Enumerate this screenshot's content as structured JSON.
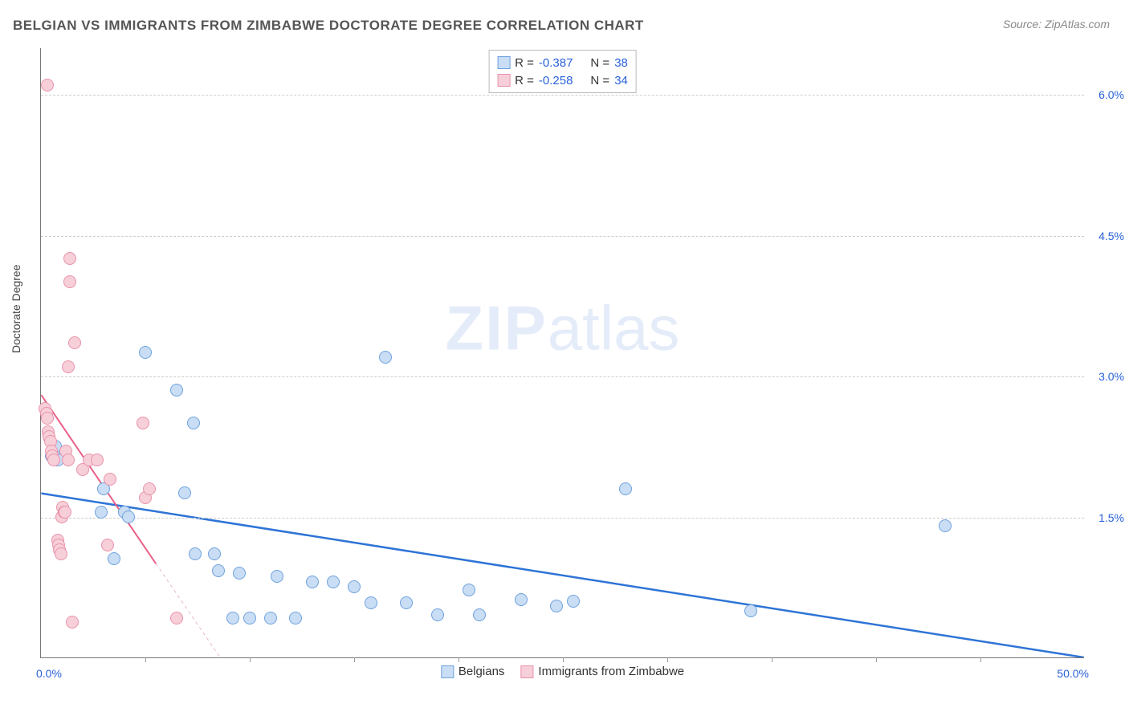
{
  "title": "BELGIAN VS IMMIGRANTS FROM ZIMBABWE DOCTORATE DEGREE CORRELATION CHART",
  "source": "Source: ZipAtlas.com",
  "ylabel": "Doctorate Degree",
  "watermark_a": "ZIP",
  "watermark_b": "atlas",
  "chart": {
    "type": "scatter",
    "xlim": [
      0,
      50
    ],
    "ylim": [
      0,
      6.5
    ],
    "x_left_label": "0.0%",
    "x_right_label": "50.0%",
    "x_ticks": [
      5,
      10,
      15,
      20,
      25,
      30,
      35,
      40,
      45
    ],
    "y_gridlines": [
      1.5,
      3.0,
      4.5,
      6.0
    ],
    "y_tick_labels": [
      "1.5%",
      "3.0%",
      "4.5%",
      "6.0%"
    ],
    "grid_color": "#cccccc",
    "axis_color": "#777777",
    "plot_bg": "#ffffff",
    "point_radius": 8,
    "series": [
      {
        "name": "Belgians",
        "fill": "#c9ddf4",
        "stroke": "#6fa2de",
        "r_label": "R =",
        "r_value": "-0.387",
        "n_label": "N =",
        "n_value": "38",
        "trend": {
          "color": "#2e74d6",
          "width": 2.5,
          "x1": 0,
          "y1": 1.75,
          "x2": 50,
          "y2": 0.0,
          "dash": "none"
        },
        "points": [
          [
            0.4,
            2.35
          ],
          [
            0.5,
            2.15
          ],
          [
            0.6,
            2.2
          ],
          [
            0.7,
            2.25
          ],
          [
            0.8,
            2.1
          ],
          [
            2.9,
            1.55
          ],
          [
            3.0,
            1.8
          ],
          [
            3.5,
            1.05
          ],
          [
            4.0,
            1.55
          ],
          [
            4.2,
            1.5
          ],
          [
            5.0,
            3.25
          ],
          [
            6.5,
            2.85
          ],
          [
            6.9,
            1.75
          ],
          [
            7.3,
            2.5
          ],
          [
            7.4,
            1.1
          ],
          [
            8.3,
            1.1
          ],
          [
            8.5,
            0.92
          ],
          [
            9.2,
            0.42
          ],
          [
            9.5,
            0.9
          ],
          [
            10.0,
            0.42
          ],
          [
            11.0,
            0.42
          ],
          [
            11.3,
            0.86
          ],
          [
            12.2,
            0.42
          ],
          [
            13.0,
            0.8
          ],
          [
            14.0,
            0.8
          ],
          [
            15.0,
            0.75
          ],
          [
            15.8,
            0.58
          ],
          [
            16.5,
            3.2
          ],
          [
            17.5,
            0.58
          ],
          [
            19.0,
            0.45
          ],
          [
            20.5,
            0.72
          ],
          [
            21.0,
            0.45
          ],
          [
            23.0,
            0.62
          ],
          [
            24.7,
            0.55
          ],
          [
            25.5,
            0.6
          ],
          [
            28.0,
            1.8
          ],
          [
            34.0,
            0.5
          ],
          [
            43.3,
            1.4
          ]
        ]
      },
      {
        "name": "Immigrants from Zimbabwe",
        "fill": "#f6cfd9",
        "stroke": "#e993ab",
        "r_label": "R =",
        "r_value": "-0.258",
        "n_label": "N =",
        "n_value": "34",
        "trend": {
          "color": "#e85f86",
          "width": 2,
          "x1": 0,
          "y1": 2.8,
          "x2": 5.5,
          "y2": 1.0,
          "dash": "none"
        },
        "trend_ext": {
          "color": "#e9b8c4",
          "width": 1,
          "x1": 5.5,
          "y1": 1.0,
          "x2": 9.5,
          "y2": -0.3,
          "dash": "4 4"
        },
        "points": [
          [
            0.2,
            2.65
          ],
          [
            0.25,
            2.6
          ],
          [
            0.3,
            2.55
          ],
          [
            0.35,
            2.4
          ],
          [
            0.4,
            2.35
          ],
          [
            0.45,
            2.3
          ],
          [
            0.5,
            2.2
          ],
          [
            0.55,
            2.15
          ],
          [
            0.6,
            2.1
          ],
          [
            0.3,
            6.1
          ],
          [
            0.8,
            1.25
          ],
          [
            0.85,
            1.2
          ],
          [
            0.9,
            1.15
          ],
          [
            0.95,
            1.1
          ],
          [
            1.0,
            1.5
          ],
          [
            1.05,
            1.6
          ],
          [
            1.1,
            1.55
          ],
          [
            1.15,
            1.55
          ],
          [
            1.2,
            2.2
          ],
          [
            1.3,
            2.1
          ],
          [
            1.3,
            3.1
          ],
          [
            1.4,
            4.25
          ],
          [
            1.4,
            4.0
          ],
          [
            1.5,
            0.38
          ],
          [
            1.6,
            3.35
          ],
          [
            2.0,
            2.0
          ],
          [
            2.3,
            2.1
          ],
          [
            2.7,
            2.1
          ],
          [
            3.2,
            1.2
          ],
          [
            3.3,
            1.9
          ],
          [
            4.9,
            2.5
          ],
          [
            5.0,
            1.7
          ],
          [
            5.2,
            1.8
          ],
          [
            6.5,
            0.42
          ]
        ]
      }
    ],
    "legend": {
      "series1": "Belgians",
      "series2": "Immigrants from Zimbabwe"
    }
  }
}
